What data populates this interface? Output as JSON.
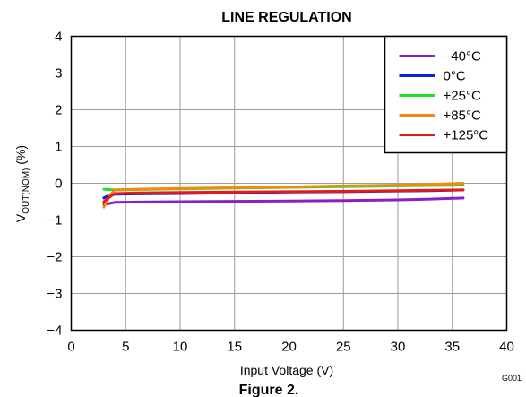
{
  "chart_data": {
    "type": "line",
    "title": "LINE REGULATION",
    "xlabel": "Input Voltage (V)",
    "ylabel": "V(%)",
    "ylabel_main": "V",
    "ylabel_sub": "OUT(NOM)",
    "ylabel_unit": " (%)",
    "xlim": [
      0,
      40
    ],
    "ylim": [
      -4,
      4
    ],
    "xticks": [
      0,
      5,
      10,
      15,
      20,
      25,
      30,
      35,
      40
    ],
    "yticks": [
      -4,
      -3,
      -2,
      -1,
      0,
      1,
      2,
      3,
      4
    ],
    "ytick_labels": [
      "−4",
      "−3",
      "−2",
      "−1",
      "0",
      "1",
      "2",
      "3",
      "4"
    ],
    "grid": true,
    "legend_position": "top-right",
    "series": [
      {
        "name": "−40°C",
        "color": "#8a1fc8",
        "x": [
          3,
          3.5,
          4,
          6,
          10,
          15,
          20,
          25,
          30,
          33,
          36
        ],
        "y": [
          -0.58,
          -0.55,
          -0.52,
          -0.51,
          -0.5,
          -0.49,
          -0.48,
          -0.47,
          -0.45,
          -0.43,
          -0.4
        ]
      },
      {
        "name": "0°C",
        "color": "#0a22d8",
        "x": [
          3,
          3.5,
          4,
          6,
          10,
          15,
          20,
          25,
          30,
          33,
          36
        ],
        "y": [
          -0.4,
          -0.33,
          -0.3,
          -0.29,
          -0.28,
          -0.26,
          -0.24,
          -0.23,
          -0.21,
          -0.2,
          -0.18
        ]
      },
      {
        "name": "+25°C",
        "color": "#22e022",
        "x": [
          3,
          3.5,
          4,
          6,
          10,
          15,
          20,
          25,
          30,
          33,
          36
        ],
        "y": [
          -0.16,
          -0.17,
          -0.18,
          -0.17,
          -0.15,
          -0.13,
          -0.11,
          -0.09,
          -0.07,
          -0.06,
          -0.05
        ]
      },
      {
        "name": "+85°C",
        "color": "#f08a10",
        "x": [
          3,
          3.5,
          4,
          6,
          10,
          15,
          20,
          25,
          30,
          33,
          36
        ],
        "y": [
          -0.65,
          -0.35,
          -0.18,
          -0.16,
          -0.14,
          -0.12,
          -0.1,
          -0.07,
          -0.05,
          -0.03,
          0.0
        ]
      },
      {
        "name": "+125°C",
        "color": "#e81818",
        "x": [
          3,
          3.5,
          4,
          6,
          10,
          15,
          20,
          25,
          30,
          33,
          36
        ],
        "y": [
          -0.5,
          -0.38,
          -0.28,
          -0.26,
          -0.25,
          -0.24,
          -0.23,
          -0.22,
          -0.2,
          -0.19,
          -0.18
        ]
      }
    ]
  },
  "figure_code": "G001",
  "figure_caption": "Figure 2."
}
